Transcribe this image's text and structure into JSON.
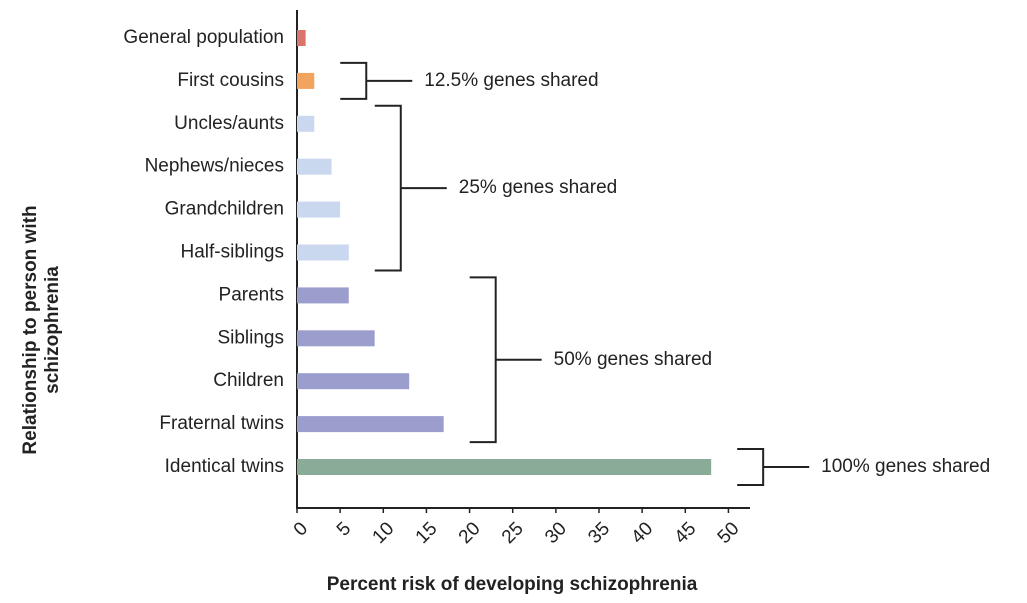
{
  "chart_data": {
    "type": "bar",
    "orientation": "horizontal",
    "xlabel": "Percent risk of developing schizophrenia",
    "ylabel": "Relationship to person with schizophrenia",
    "categories": [
      "General population",
      "First cousins",
      "Uncles/aunts",
      "Nephews/nieces",
      "Grandchildren",
      "Half-siblings",
      "Parents",
      "Siblings",
      "Children",
      "Fraternal twins",
      "Identical twins"
    ],
    "values": [
      1,
      2,
      2,
      4,
      5,
      6,
      6,
      9,
      13,
      17,
      48
    ],
    "colors": [
      "#d9756a",
      "#f2a35e",
      "#c9d7ef",
      "#c9d7ef",
      "#c9d7ef",
      "#c9d7ef",
      "#9b9dcd",
      "#9b9dcd",
      "#9b9dcd",
      "#9b9dcd",
      "#8aab98"
    ],
    "xlim": [
      0,
      52.5
    ],
    "xticks": [
      0,
      5,
      10,
      15,
      20,
      25,
      30,
      35,
      40,
      45,
      50
    ],
    "annotations": [
      {
        "text": "12.5% genes shared",
        "from": "First cousins",
        "to": "First cousins"
      },
      {
        "text": "25% genes shared",
        "from": "Uncles/aunts",
        "to": "Half-siblings"
      },
      {
        "text": "50% genes shared",
        "from": "Parents",
        "to": "Fraternal twins"
      },
      {
        "text": "100% genes shared",
        "from": "Identical twins",
        "to": "Identical twins"
      }
    ]
  }
}
